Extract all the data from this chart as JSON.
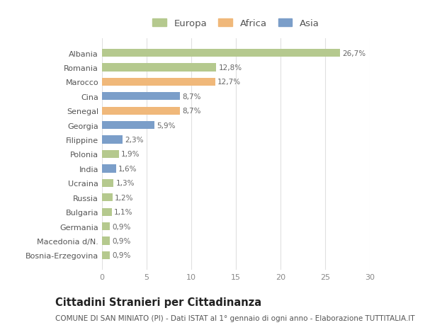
{
  "categories": [
    "Bosnia-Erzegovina",
    "Macedonia d/N.",
    "Germania",
    "Bulgaria",
    "Russia",
    "Ucraina",
    "India",
    "Polonia",
    "Filippine",
    "Georgia",
    "Senegal",
    "Cina",
    "Marocco",
    "Romania",
    "Albania"
  ],
  "values": [
    0.9,
    0.9,
    0.9,
    1.1,
    1.2,
    1.3,
    1.6,
    1.9,
    2.3,
    5.9,
    8.7,
    8.7,
    12.7,
    12.8,
    26.7
  ],
  "labels": [
    "0,9%",
    "0,9%",
    "0,9%",
    "1,1%",
    "1,2%",
    "1,3%",
    "1,6%",
    "1,9%",
    "2,3%",
    "5,9%",
    "8,7%",
    "8,7%",
    "12,7%",
    "12,8%",
    "26,7%"
  ],
  "colors": [
    "#b5c98e",
    "#b5c98e",
    "#b5c98e",
    "#b5c98e",
    "#b5c98e",
    "#b5c98e",
    "#7b9ec9",
    "#b5c98e",
    "#7b9ec9",
    "#7b9ec9",
    "#f0b87a",
    "#7b9ec9",
    "#f0b87a",
    "#b5c98e",
    "#b5c98e"
  ],
  "legend_labels": [
    "Europa",
    "Africa",
    "Asia"
  ],
  "legend_colors": [
    "#b5c98e",
    "#f0b87a",
    "#7b9ec9"
  ],
  "title": "Cittadini Stranieri per Cittadinanza",
  "subtitle": "COMUNE DI SAN MINIATO (PI) - Dati ISTAT al 1° gennaio di ogni anno - Elaborazione TUTTITALIA.IT",
  "xlim": [
    0,
    30
  ],
  "xticks": [
    0,
    5,
    10,
    15,
    20,
    25,
    30
  ],
  "bg_color": "#ffffff",
  "plot_bg_color": "#ffffff",
  "grid_color": "#e0e0e0",
  "bar_height": 0.55,
  "title_fontsize": 10.5,
  "subtitle_fontsize": 7.5,
  "label_fontsize": 7.5,
  "ytick_fontsize": 8,
  "xtick_fontsize": 8,
  "legend_fontsize": 9.5
}
